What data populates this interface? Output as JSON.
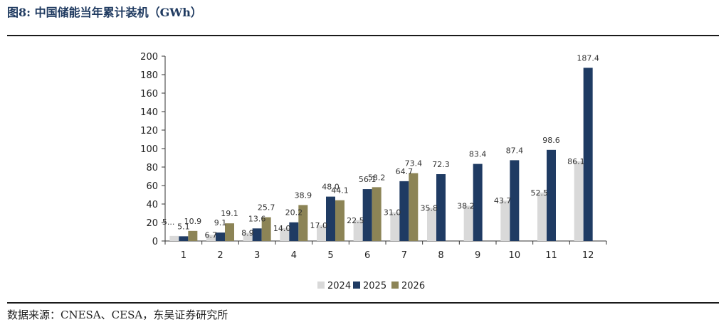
{
  "header": {
    "title": "图8:  中国储能当年累计装机（GWh）"
  },
  "footer": {
    "source": "数据来源：CNESA、CESA，东吴证券研究所"
  },
  "colors": {
    "s2024": "#d9d9d9",
    "s2025": "#1f3b63",
    "s2026": "#8c8456"
  },
  "chart_data": {
    "type": "bar",
    "title": "",
    "xlabel": "",
    "ylabel": "",
    "ylim": [
      0,
      200
    ],
    "yticks": [
      0,
      20,
      40,
      60,
      80,
      100,
      120,
      140,
      160,
      180,
      200
    ],
    "categories": [
      "1",
      "2",
      "3",
      "4",
      "5",
      "6",
      "7",
      "8",
      "9",
      "10",
      "11",
      "12"
    ],
    "legend_position": "bottom",
    "series": [
      {
        "name": "2024",
        "values": [
          5.5,
          6.7,
          8.9,
          14.0,
          17.0,
          22.5,
          31.0,
          35.8,
          38.2,
          43.7,
          52.5,
          86.1
        ],
        "labels": [
          "5...",
          "6.7",
          "8.9",
          "14.0",
          "17.0",
          "22.5",
          "31.0",
          "35.8",
          "38.2",
          "43.7",
          "52.5",
          "86.1"
        ]
      },
      {
        "name": "2025",
        "values": [
          5.1,
          9.1,
          13.6,
          20.2,
          48.0,
          56.1,
          64.7,
          72.3,
          83.4,
          87.4,
          98.6,
          187.4
        ],
        "labels": [
          "5.1",
          "9.1",
          "13.6",
          "20.2",
          "48.0",
          "56.1",
          "64.7",
          "72.3",
          "83.4",
          "87.4",
          "98.6",
          "187.4"
        ]
      },
      {
        "name": "2026",
        "values": [
          10.9,
          19.1,
          25.7,
          38.9,
          44.1,
          58.2,
          73.4,
          null,
          null,
          null,
          null,
          null
        ],
        "labels": [
          "10.9",
          "19.1",
          "25.7",
          "38.9",
          "44.1",
          "58.2",
          "73.4",
          null,
          null,
          null,
          null,
          null
        ]
      }
    ]
  }
}
